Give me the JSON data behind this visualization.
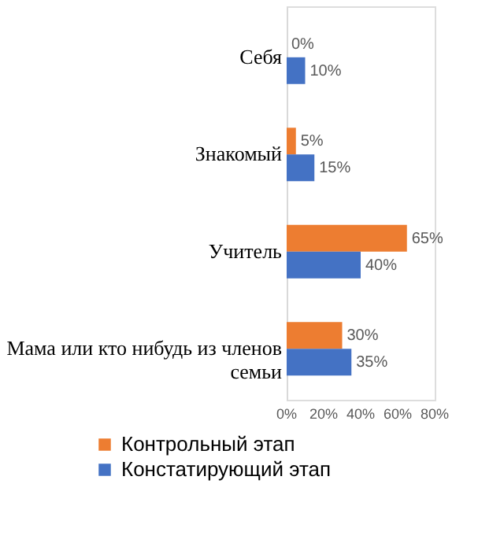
{
  "chart_data": {
    "type": "bar",
    "orientation": "horizontal",
    "categories": [
      "Себя",
      "Знакомый",
      "Учитель",
      "Мама или кто нибудь из членов семьи"
    ],
    "series": [
      {
        "name": "Контрольный этап",
        "color": "#ed7d31",
        "values": [
          0,
          5,
          65,
          30
        ],
        "value_labels": [
          "0%",
          "5%",
          "65%",
          "30%"
        ]
      },
      {
        "name": "Констатирующий этап",
        "color": "#4472c4",
        "values": [
          10,
          15,
          40,
          35
        ],
        "value_labels": [
          "10%",
          "15%",
          "40%",
          "35%"
        ]
      }
    ],
    "xlim": [
      0,
      80
    ],
    "xticks": [
      {
        "value": 0,
        "label": "0%"
      },
      {
        "value": 20,
        "label": "20%"
      },
      {
        "value": 40,
        "label": "40%"
      },
      {
        "value": 60,
        "label": "60%"
      },
      {
        "value": 80,
        "label": "80%"
      }
    ],
    "grid": false,
    "legend": "bottom"
  }
}
